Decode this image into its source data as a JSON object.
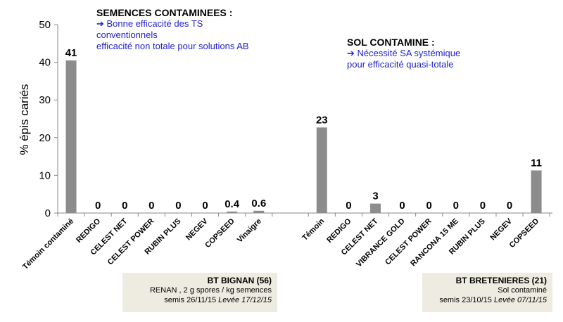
{
  "chart_data": {
    "type": "bar",
    "ylabel": "% épis cariés",
    "ylim": [
      0,
      50
    ],
    "yticks": [
      0,
      10,
      20,
      30,
      40,
      50
    ],
    "bar_color": "#8c8c8c",
    "groups": [
      {
        "categories": [
          "Témoin contaminé",
          "REDIGO",
          "CELEST NET",
          "CELEST POWER",
          "RUBIN PLUS",
          "NEGEV",
          "COPSEED",
          "Vinaigre"
        ],
        "values": [
          40.5,
          0,
          0,
          0,
          0,
          0,
          0.4,
          0.6
        ],
        "labels": [
          "41",
          "0",
          "0",
          "0",
          "0",
          "0",
          "0.4",
          "0.6"
        ]
      },
      {
        "categories": [
          "Témoin",
          "REDIGO",
          "CELEST NET",
          "VIBRANCE GOLD",
          "CELEST POWER",
          "RANCONA 15 ME",
          "RUBIN PLUS",
          "NEGEV",
          "COPSEED"
        ],
        "values": [
          22.7,
          0,
          2.5,
          0,
          0,
          0,
          0,
          0,
          11.3
        ],
        "labels": [
          "23",
          "0",
          "3",
          "0",
          "0",
          "0",
          "0",
          "0",
          "11"
        ]
      }
    ]
  },
  "annotations": {
    "semences": {
      "title": "SEMENCES CONTAMINEES :",
      "line1": "➔ Bonne efficacité des TS",
      "line2": "conventionnels",
      "line3": " efficacité non totale pour solutions AB"
    },
    "sol": {
      "title": "SOL CONTAMINE :",
      "line1": "➔ Nécessité SA systémique",
      "line2": "pour  efficacité quasi-totale"
    }
  },
  "site_boxes": {
    "bignan": {
      "title": "BT BIGNAN (56)",
      "line1": "RENAN , 2 g spores / kg semences",
      "semis": "semis 26/11/15 ",
      "levee": "Levée 17/12/15"
    },
    "bretenieres": {
      "title": "BT BRETENIERES (21)",
      "line1": "Sol contaminé",
      "semis": "semis 23/10/15 ",
      "levee": "Levée 07/11/15"
    }
  }
}
